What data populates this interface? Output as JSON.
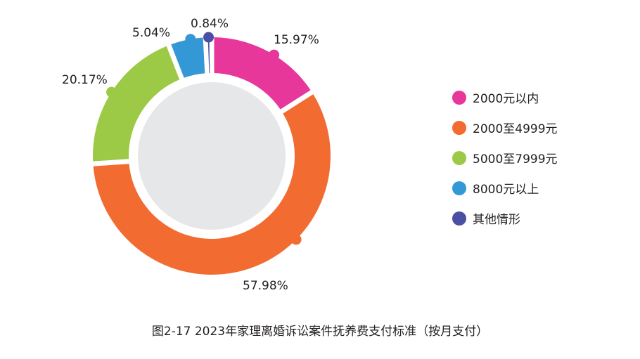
{
  "chart_data": {
    "type": "pie",
    "title": "图2-17  2023年家理离婚诉讼案件抚养费支付标准（按月支付）",
    "categories": [
      "2000元以内",
      "2000至4999元",
      "5000至7999元",
      "8000元以上",
      "其他情形"
    ],
    "values": [
      15.97,
      57.98,
      20.17,
      5.04,
      0.84
    ],
    "value_labels": [
      "15.97%",
      "57.98%",
      "20.17%",
      "5.04%",
      "0.84%"
    ],
    "colors": [
      "#e7379a",
      "#f26b30",
      "#9dca46",
      "#3598d6",
      "#4a4fa3"
    ],
    "style": "donut",
    "center_color": "#e6e7e8",
    "legend_position": "right"
  }
}
